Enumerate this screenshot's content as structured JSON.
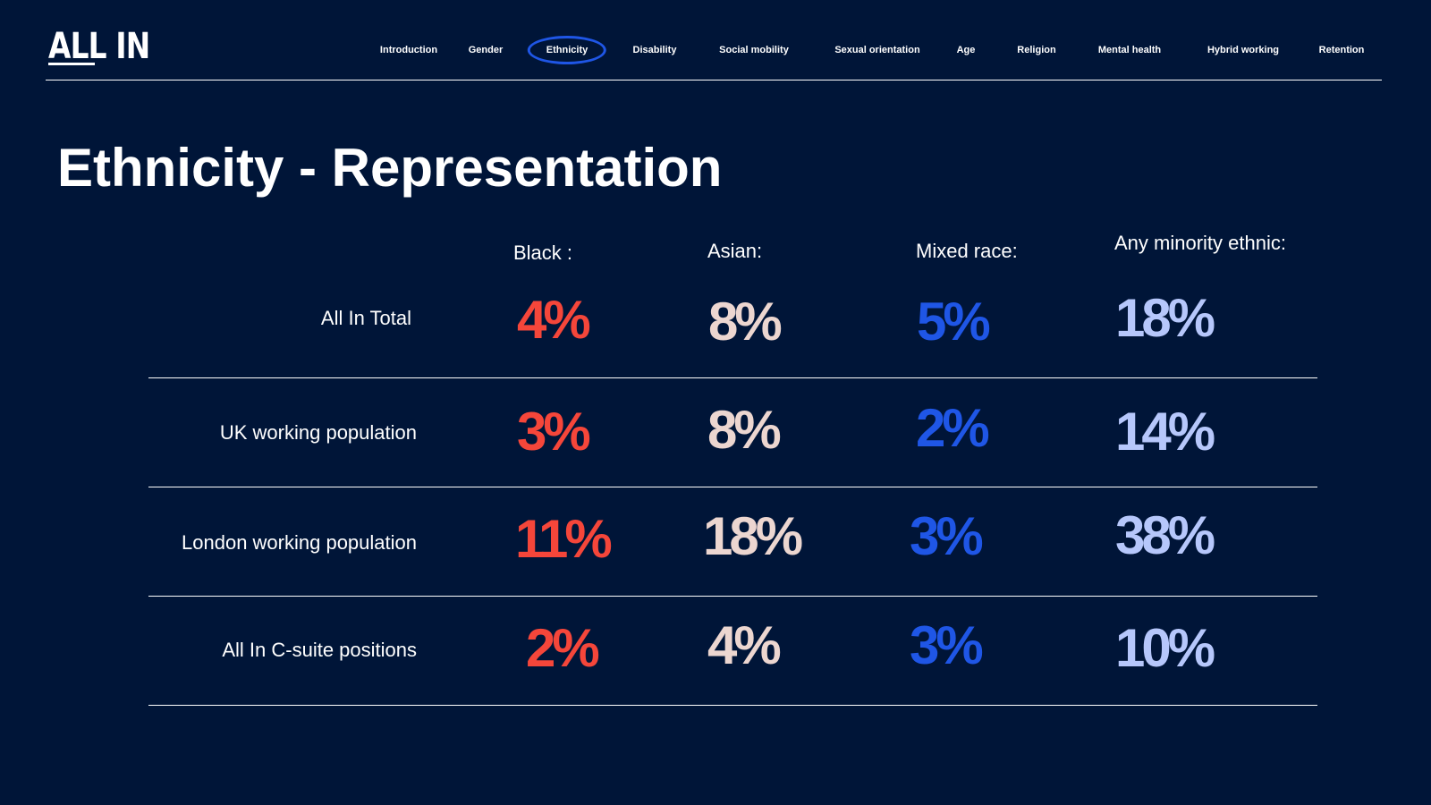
{
  "brand": {
    "logo_text": "ALL IN"
  },
  "nav": {
    "items": [
      {
        "label": "Introduction"
      },
      {
        "label": "Gender"
      },
      {
        "label": "Ethnicity",
        "active": true
      },
      {
        "label": "Disability"
      },
      {
        "label": "Social mobility"
      },
      {
        "label": "Sexual orientation"
      },
      {
        "label": "Age"
      },
      {
        "label": "Religion"
      },
      {
        "label": "Mental health"
      },
      {
        "label": "Hybrid working"
      },
      {
        "label": "Retention"
      }
    ]
  },
  "page": {
    "title": "Ethnicity - Representation"
  },
  "table": {
    "columns": [
      "Black :",
      "Asian:",
      "Mixed race:",
      "Any minority ethnic:"
    ],
    "rows": [
      {
        "label": "All In Total",
        "values": [
          "4%",
          "8%",
          "5%",
          "18%"
        ]
      },
      {
        "label": "UK working population",
        "values": [
          "3%",
          "8%",
          "2%",
          "14%"
        ]
      },
      {
        "label": "London working population",
        "values": [
          "11%",
          "18%",
          "3%",
          "38%"
        ]
      },
      {
        "label": "All In C-suite positions",
        "values": [
          "2%",
          "4%",
          "3%",
          "10%"
        ]
      }
    ]
  },
  "colors": {
    "background": "#001538",
    "black": "#f5463a",
    "asian": "#ecd6d0",
    "mixed": "#1f56e6",
    "any_minority": "#b6c7fb",
    "nav_highlight": "#1f56e6"
  }
}
